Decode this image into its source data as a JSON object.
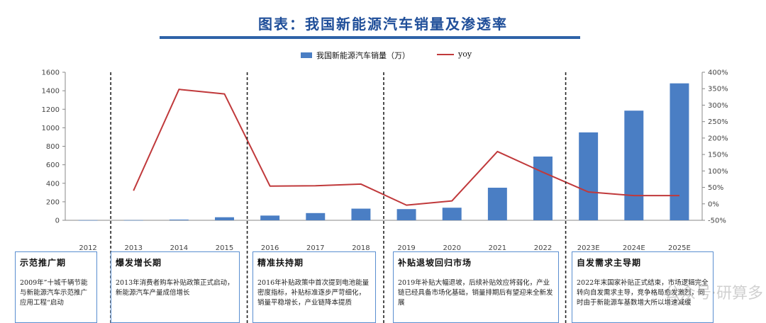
{
  "title": "图表：我国新能源汽车销量及渗透率",
  "chart_data": {
    "type": "bar",
    "categories": [
      "2012",
      "2013",
      "2014",
      "2015",
      "2016",
      "2017",
      "2018",
      "2019",
      "2020",
      "2021",
      "2022",
      "2023E",
      "2024E",
      "2025E"
    ],
    "series": [
      {
        "name": "我国新能源汽车销量（万）",
        "type": "bar",
        "axis": "left",
        "values": [
          1.3,
          1.8,
          7.5,
          33,
          51,
          78,
          126,
          121,
          136,
          352,
          689,
          950,
          1185,
          1480
        ]
      },
      {
        "name": "yoy",
        "type": "line",
        "axis": "right",
        "values": [
          null,
          40,
          348,
          334,
          54,
          55,
          60,
          -4,
          9,
          159,
          96,
          36,
          25,
          25
        ]
      }
    ],
    "left_axis": {
      "ylim": [
        0,
        1600
      ],
      "ticks": [
        "0",
        "200",
        "400",
        "600",
        "800",
        "1000",
        "1200",
        "1400",
        "1600"
      ]
    },
    "right_axis": {
      "ylim": [
        -50,
        400
      ],
      "ticks": [
        "-50%",
        "0%",
        "50%",
        "100%",
        "150%",
        "200%",
        "250%",
        "300%",
        "350%",
        "400%"
      ]
    },
    "colors": {
      "bar": "#4a7ec4",
      "line": "#c0393b",
      "divider": "#222222",
      "box_border": "#5a8ed0",
      "title": "#1f4e99"
    },
    "legend_position": "top-center",
    "grid": false
  },
  "phases": [
    {
      "title": "示范推广期",
      "text": "2009年”十城千辆节能与新能源汽车示范推广应用工程“启动"
    },
    {
      "title": "爆发增长期",
      "text": "2013年消费者购车补贴政策正式启动，新能源汽车产量成倍增长"
    },
    {
      "title": "精准扶持期",
      "text": "2016年补贴政策中首次提到电池能量密度指标，补贴标准逐步严苛细化，销量平稳增长，产业链降本提质"
    },
    {
      "title": "补贴退坡回归市场",
      "text": "2019年补贴大幅退坡，后续补贴效应将弱化，产业链已经具备市场化基础，销量排期后有望迎来全新发展"
    },
    {
      "title": "自发需求主导期",
      "text": "2022年末国家补贴正式结束，市场逻辑完全转向自发需求主导，竞争格局愈发激烈，同时由于新能源车基数增大所以增速减缓"
    }
  ],
  "watermark": "公众号·研算多"
}
